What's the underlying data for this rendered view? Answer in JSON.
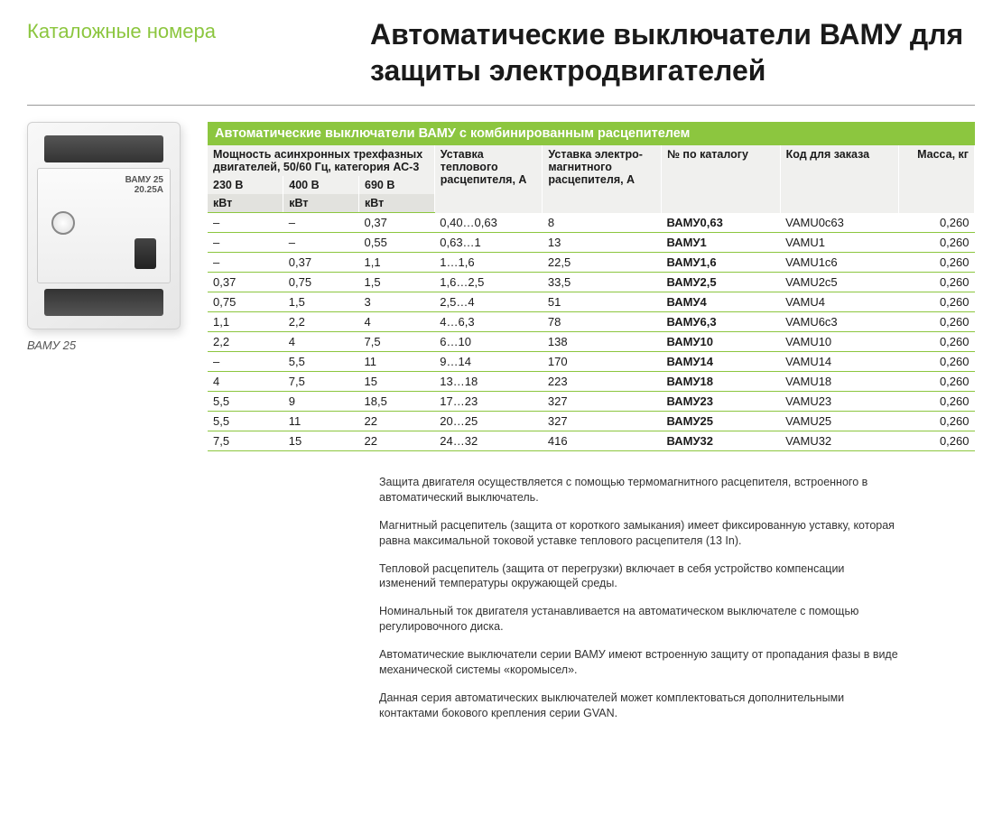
{
  "header": {
    "category": "Каталожные номера",
    "title": "Автоматические выключатели ВАМУ для защиты электродвигателей"
  },
  "product_image": {
    "label_line1": "ВАМУ 25",
    "label_line2": "20.25А",
    "caption": "ВАМУ 25"
  },
  "table": {
    "title": "Автоматические выключатели ВАМУ с комбинированным расцепителем",
    "group_headers": {
      "motor_power": "Мощность асинхронных трехфазных двигателей, 50/60 Гц, категория АС-3",
      "thermal": "Уставка теплового расцепителя, А",
      "magnetic": "Уставка электро-магнитного расцепителя, А",
      "catalog_no": "№ по каталогу",
      "order_code": "Код для заказа",
      "mass": "Масса, кг"
    },
    "sub_headers": {
      "v230": "230 В",
      "v400": "400 В",
      "v690": "690 В"
    },
    "unit_headers": {
      "kw": "кВт"
    },
    "rows": [
      {
        "v230": "–",
        "v400": "–",
        "v690": "0,37",
        "thermal": "0,40…0,63",
        "mag": "8",
        "cat": "ВАМУ0,63",
        "code": "VAMU0c63",
        "mass": "0,260"
      },
      {
        "v230": "–",
        "v400": "–",
        "v690": "0,55",
        "thermal": "0,63…1",
        "mag": "13",
        "cat": "ВАМУ1",
        "code": "VAMU1",
        "mass": "0,260"
      },
      {
        "v230": "–",
        "v400": "0,37",
        "v690": "1,1",
        "thermal": "1…1,6",
        "mag": "22,5",
        "cat": "ВАМУ1,6",
        "code": "VAMU1c6",
        "mass": "0,260"
      },
      {
        "v230": "0,37",
        "v400": "0,75",
        "v690": "1,5",
        "thermal": "1,6…2,5",
        "mag": "33,5",
        "cat": "ВАМУ2,5",
        "code": "VAMU2c5",
        "mass": "0,260"
      },
      {
        "v230": "0,75",
        "v400": "1,5",
        "v690": "3",
        "thermal": "2,5…4",
        "mag": "51",
        "cat": "ВАМУ4",
        "code": "VAMU4",
        "mass": "0,260"
      },
      {
        "v230": "1,1",
        "v400": "2,2",
        "v690": "4",
        "thermal": "4…6,3",
        "mag": "78",
        "cat": "ВАМУ6,3",
        "code": "VAMU6c3",
        "mass": "0,260"
      },
      {
        "v230": "2,2",
        "v400": "4",
        "v690": "7,5",
        "thermal": "6…10",
        "mag": "138",
        "cat": "ВАМУ10",
        "code": "VAMU10",
        "mass": "0,260"
      },
      {
        "v230": "–",
        "v400": "5,5",
        "v690": "11",
        "thermal": "9…14",
        "mag": "170",
        "cat": "ВАМУ14",
        "code": "VAMU14",
        "mass": "0,260"
      },
      {
        "v230": "4",
        "v400": "7,5",
        "v690": "15",
        "thermal": "13…18",
        "mag": "223",
        "cat": "ВАМУ18",
        "code": "VAMU18",
        "mass": "0,260"
      },
      {
        "v230": "5,5",
        "v400": "9",
        "v690": "18,5",
        "thermal": "17…23",
        "mag": "327",
        "cat": "ВАМУ23",
        "code": "VAMU23",
        "mass": "0,260"
      },
      {
        "v230": "5,5",
        "v400": "11",
        "v690": "22",
        "thermal": "20…25",
        "mag": "327",
        "cat": "ВАМУ25",
        "code": "VAMU25",
        "mass": "0,260"
      },
      {
        "v230": "7,5",
        "v400": "15",
        "v690": "22",
        "thermal": "24…32",
        "mag": "416",
        "cat": "ВАМУ32",
        "code": "VAMU32",
        "mass": "0,260"
      }
    ]
  },
  "notes": [
    "Защита двигателя осуществляется с помощью термомагнитного расцепителя, встроенного в автоматический выключатель.",
    "Магнитный расцепитель (защита от короткого замыкания) имеет фиксированную уставку, которая равна максимальной токовой уставке теплового расцепителя (13 In).",
    "Тепловой расцепитель (защита от перегрузки) включает в себя устройство компенсации изменений температуры окружающей среды.",
    "Номинальный ток двигателя устанавливается на автоматическом выключателе с помощью регулировочного диска.",
    "Автоматические выключатели серии ВАМУ имеют встроенную защиту от пропадания фазы в виде механической системы «коромысел».",
    "Данная серия автоматических выключателей может комплектоваться дополнительными контактами бокового крепления серии GVAN."
  ],
  "styling": {
    "accent_green": "#8cc63f",
    "header_bg": "#f0f0ee",
    "unit_row_bg": "#e2e2de",
    "text_color": "#1a1a1a",
    "rule_color": "#999999"
  }
}
